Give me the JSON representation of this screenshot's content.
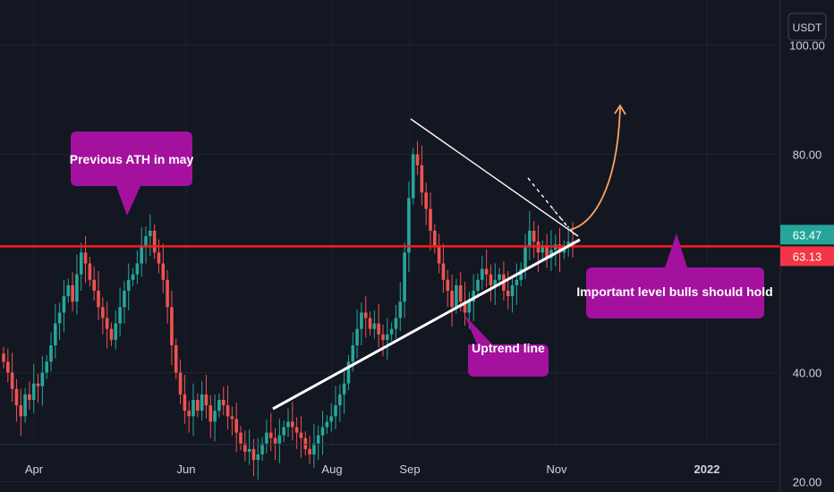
{
  "chart_data": {
    "type": "candlestick",
    "currency": "USDT",
    "y_ticks": [
      "100.00",
      "80.00",
      "40.00",
      "20.00"
    ],
    "x_ticks": [
      {
        "label": "Apr",
        "bold": false
      },
      {
        "label": "Jun",
        "bold": false
      },
      {
        "label": "Aug",
        "bold": false
      },
      {
        "label": "Sep",
        "bold": false
      },
      {
        "label": "Nov",
        "bold": false
      },
      {
        "label": "2022",
        "bold": true
      }
    ],
    "ylim": [
      14,
      105
    ],
    "horizontal_level": 63.13,
    "last_price": 63.47,
    "price_tags": [
      {
        "label": "63.47",
        "value": 63.47,
        "color": "#26a69a"
      },
      {
        "label": "63.13",
        "value": 63.13,
        "color": "#f23645"
      }
    ],
    "colors": {
      "up": "#26a69a",
      "down": "#ef5350",
      "level": "#ff1a1a",
      "callout": "#a3119e",
      "projection": "#ffa25e"
    },
    "closes": [
      42.0,
      40.0,
      37.0,
      34.0,
      32.0,
      36.0,
      35.0,
      38.0,
      37.5,
      40.0,
      42.0,
      45.0,
      49.0,
      51.0,
      54.0,
      56.0,
      53.0,
      58.0,
      62.0,
      60.0,
      57.0,
      55.0,
      52.0,
      50.0,
      48.0,
      46.0,
      49.0,
      52.0,
      55.0,
      57.0,
      58.0,
      60.0,
      63.0,
      65.0,
      66.0,
      62.0,
      60.0,
      57.0,
      52.0,
      45.0,
      40.0,
      36.0,
      33.0,
      32.0,
      35.0,
      33.0,
      36.0,
      34.0,
      31.0,
      33.0,
      35.0,
      34.0,
      32.0,
      31.5,
      29.0,
      27.0,
      25.5,
      26.0,
      24.0,
      25.0,
      27.0,
      29.0,
      28.0,
      27.0,
      28.5,
      30.0,
      31.0,
      30.0,
      29.0,
      28.0,
      26.0,
      25.0,
      27.0,
      28.5,
      30.0,
      31.0,
      32.0,
      34.0,
      36.0,
      38.0,
      42.0,
      45.0,
      48.0,
      51.0,
      50.0,
      48.0,
      49.0,
      47.0,
      46.0,
      47.0,
      48.0,
      50.0,
      53.0,
      62.0,
      72.0,
      80.0,
      78.0,
      73.0,
      70.0,
      66.0,
      63.0,
      60.0,
      57.0,
      55.0,
      52.0,
      56.0,
      53.0,
      51.0,
      53.0,
      55.0,
      57.0,
      59.0,
      58.0,
      56.0,
      57.0,
      58.0,
      55.0,
      54.0,
      56.0,
      57.0,
      59.0,
      63.0,
      66.0,
      64.0,
      62.0,
      63.0,
      61.0,
      62.5,
      63.5,
      62.0,
      63.0,
      64.0,
      63.47
    ],
    "annotations": [
      {
        "text": "Previous ATH in may"
      },
      {
        "text": "Important level bulls should hold"
      },
      {
        "text": "Uptrend line"
      }
    ]
  }
}
